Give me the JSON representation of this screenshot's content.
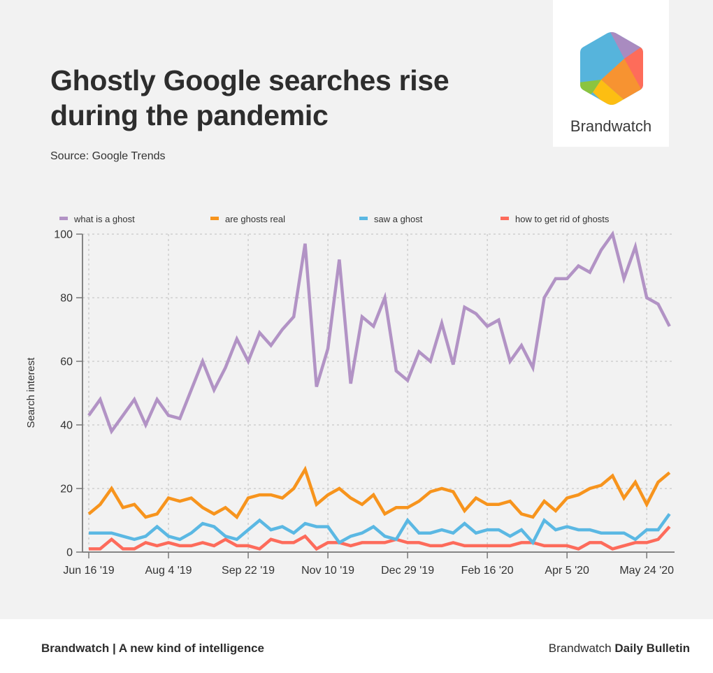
{
  "header": {
    "title": "Ghostly Google searches rise during the pandemic",
    "source": "Source: Google Trends"
  },
  "logo": {
    "name": "Brandwatch",
    "colors": {
      "blue": "#56b4dc",
      "purple": "#a98bc0",
      "red": "#fe6c5a",
      "orange": "#f79331",
      "yellow": "#fdbe12",
      "green": "#8bc43f"
    }
  },
  "footer": {
    "left": "Brandwatch | A new kind of intelligence",
    "right_regular": "Brandwatch",
    "right_bold": "Daily Bulletin"
  },
  "chart_data": {
    "type": "line",
    "title": "Ghostly Google searches rise during the pandemic",
    "xlabel": "",
    "ylabel": "Search interest",
    "ylim": [
      0,
      100
    ],
    "yticks": [
      0,
      20,
      40,
      60,
      80,
      100
    ],
    "grid": true,
    "legend_position": "top",
    "x_start": "Jun 16 '19",
    "x_interval": "weekly",
    "x_tick_labels": [
      {
        "index": 0,
        "label": "Jun 16 '19"
      },
      {
        "index": 7,
        "label": "Aug 4 '19"
      },
      {
        "index": 14,
        "label": "Sep 22 '19"
      },
      {
        "index": 21,
        "label": "Nov 10 '19"
      },
      {
        "index": 28,
        "label": "Dec 29 '19"
      },
      {
        "index": 35,
        "label": "Feb 16 '20"
      },
      {
        "index": 42,
        "label": "Apr 5 '20"
      },
      {
        "index": 49,
        "label": "May 24 '20"
      }
    ],
    "series": [
      {
        "name": "what is a ghost",
        "color": "#b293c5",
        "values": [
          43,
          48,
          38,
          43,
          48,
          40,
          48,
          43,
          42,
          51,
          60,
          51,
          58,
          67,
          60,
          69,
          65,
          70,
          74,
          97,
          52,
          64,
          92,
          53,
          74,
          71,
          80,
          57,
          54,
          63,
          60,
          72,
          59,
          77,
          75,
          71,
          73,
          60,
          65,
          58,
          80,
          86,
          86,
          90,
          88,
          95,
          100,
          86,
          96,
          80,
          78,
          71
        ]
      },
      {
        "name": "are ghosts real",
        "color": "#f7941d",
        "values": [
          12,
          15,
          20,
          14,
          15,
          11,
          12,
          17,
          16,
          17,
          14,
          12,
          14,
          11,
          17,
          18,
          18,
          17,
          20,
          26,
          15,
          18,
          20,
          17,
          15,
          18,
          12,
          14,
          14,
          16,
          19,
          20,
          19,
          13,
          17,
          15,
          15,
          16,
          12,
          11,
          16,
          13,
          17,
          18,
          20,
          21,
          24,
          17,
          22,
          15,
          22,
          25
        ]
      },
      {
        "name": "saw a ghost",
        "color": "#5bb8e3",
        "values": [
          6,
          6,
          6,
          5,
          4,
          5,
          8,
          5,
          4,
          6,
          9,
          8,
          5,
          4,
          7,
          10,
          7,
          8,
          6,
          9,
          8,
          8,
          3,
          5,
          6,
          8,
          5,
          4,
          10,
          6,
          6,
          7,
          6,
          9,
          6,
          7,
          7,
          5,
          7,
          3,
          10,
          7,
          8,
          7,
          7,
          6,
          6,
          6,
          4,
          7,
          7,
          12
        ]
      },
      {
        "name": "how to get rid of ghosts",
        "color": "#fd6b5b",
        "values": [
          1,
          1,
          4,
          1,
          1,
          3,
          2,
          3,
          2,
          2,
          3,
          2,
          4,
          2,
          2,
          1,
          4,
          3,
          3,
          5,
          1,
          3,
          3,
          2,
          3,
          3,
          3,
          4,
          3,
          3,
          2,
          2,
          3,
          2,
          2,
          2,
          2,
          2,
          3,
          3,
          2,
          2,
          2,
          1,
          3,
          3,
          1,
          2,
          3,
          3,
          4,
          8
        ]
      }
    ]
  }
}
